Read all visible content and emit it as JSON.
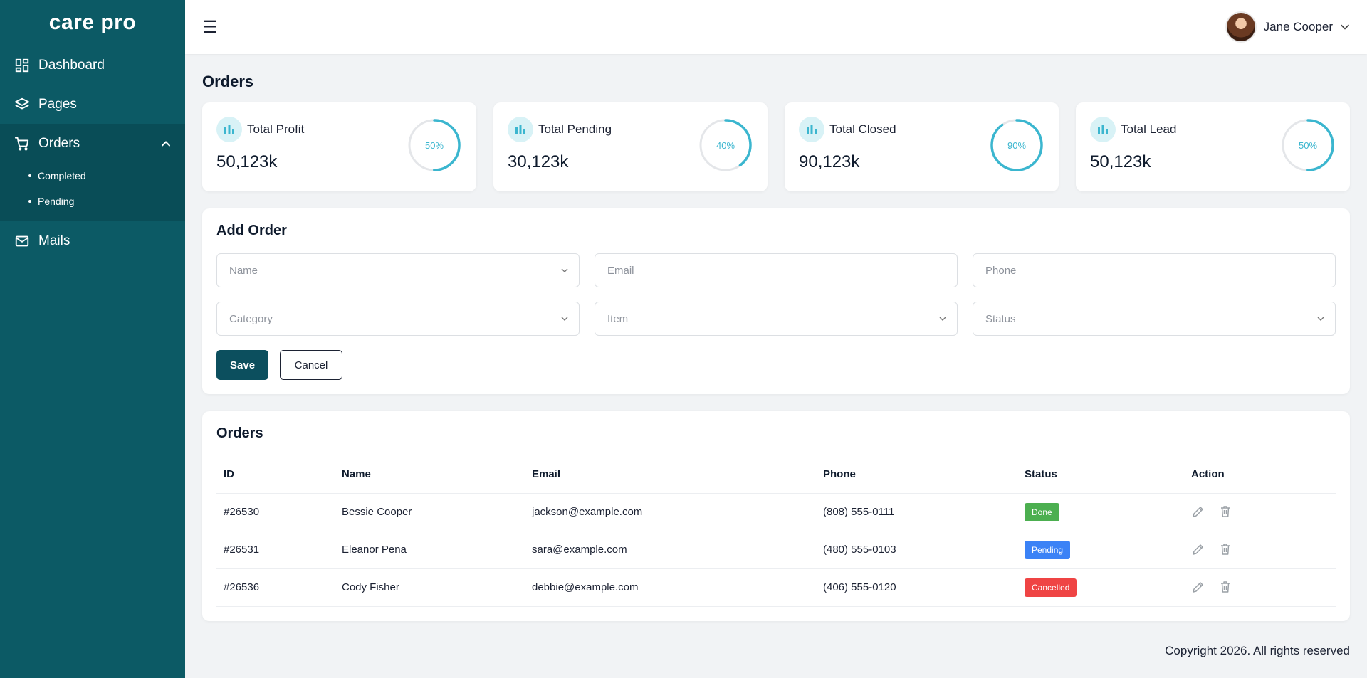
{
  "brand": {
    "name": "care pro"
  },
  "sidebar": {
    "items": [
      {
        "label": "Dashboard",
        "icon": "dashboard-icon"
      },
      {
        "label": "Pages",
        "icon": "layers-icon"
      },
      {
        "label": "Orders",
        "icon": "cart-icon",
        "expanded": true,
        "children": [
          {
            "label": "Completed"
          },
          {
            "label": "Pending"
          }
        ]
      },
      {
        "label": "Mails",
        "icon": "mail-icon"
      }
    ]
  },
  "header": {
    "menu_icon": "menu-icon",
    "user": {
      "name": "Jane Cooper"
    }
  },
  "page": {
    "title": "Orders"
  },
  "stats": [
    {
      "label": "Total Profit",
      "value": "50,123k",
      "percent": 50,
      "percent_label": "50%"
    },
    {
      "label": "Total Pending",
      "value": "30,123k",
      "percent": 40,
      "percent_label": "40%"
    },
    {
      "label": "Total Closed",
      "value": "90,123k",
      "percent": 90,
      "percent_label": "90%"
    },
    {
      "label": "Total Lead",
      "value": "50,123k",
      "percent": 50,
      "percent_label": "50%"
    }
  ],
  "add_order": {
    "title": "Add Order",
    "fields": {
      "name": {
        "placeholder": "Name",
        "value": ""
      },
      "email": {
        "placeholder": "Email",
        "value": ""
      },
      "phone": {
        "placeholder": "Phone",
        "value": ""
      },
      "category": {
        "placeholder": "Category",
        "value": ""
      },
      "item": {
        "placeholder": "Item",
        "value": ""
      },
      "status": {
        "placeholder": "Status",
        "value": ""
      }
    },
    "save_label": "Save",
    "cancel_label": "Cancel"
  },
  "orders_table": {
    "title": "Orders",
    "columns": [
      "ID",
      "Name",
      "Email",
      "Phone",
      "Status",
      "Action"
    ],
    "rows": [
      {
        "id": "#26530",
        "name": "Bessie Cooper",
        "email": "jackson@example.com",
        "phone": "(808) 555-0111",
        "status": "Done"
      },
      {
        "id": "#26531",
        "name": "Eleanor Pena",
        "email": "sara@example.com",
        "phone": "(480) 555-0103",
        "status": "Pending"
      },
      {
        "id": "#26536",
        "name": "Cody Fisher",
        "email": "debbie@example.com",
        "phone": "(406) 555-0120",
        "status": "Cancelled"
      }
    ]
  },
  "footer": {
    "text": "Copyright 2026. All rights reserved"
  },
  "colors": {
    "sidebar": "#0c5a65",
    "accent": "#3bb6cf",
    "save_button": "#0c4f5e",
    "done": "#4caf50",
    "pending": "#3b82f6",
    "cancelled": "#ef4444"
  }
}
